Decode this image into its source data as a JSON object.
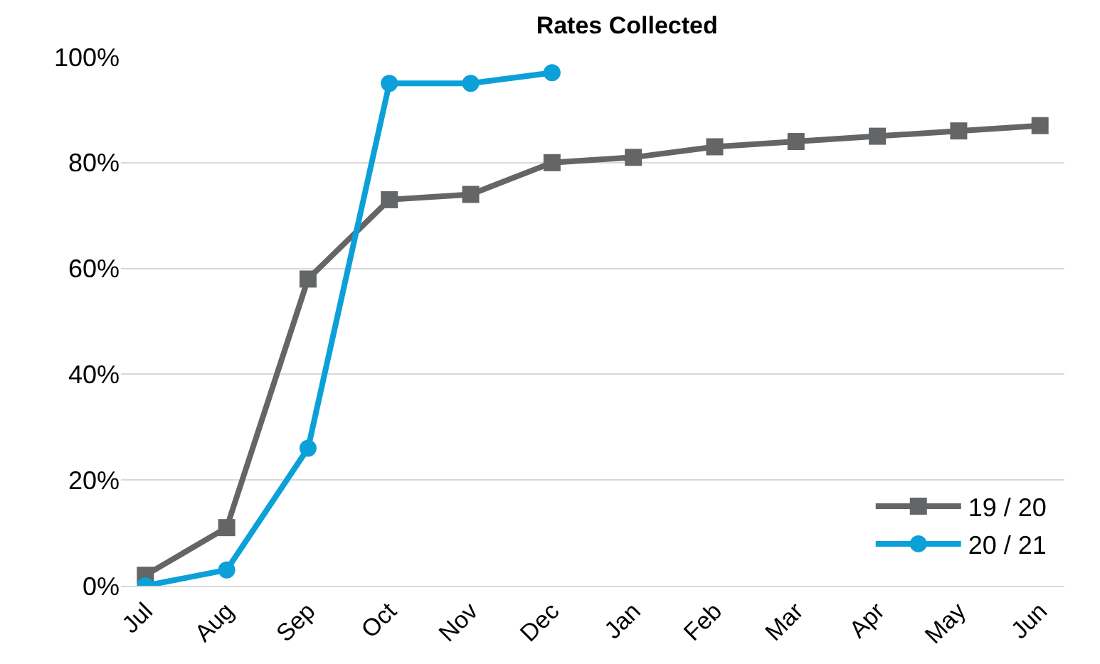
{
  "chart_data": {
    "type": "line",
    "title": "Rates Collected",
    "categories": [
      "Jul",
      "Aug",
      "Sep",
      "Oct",
      "Nov",
      "Dec",
      "Jan",
      "Feb",
      "Mar",
      "Apr",
      "May",
      "Jun"
    ],
    "series": [
      {
        "name": "19 / 20",
        "color": "#646567",
        "marker": "square",
        "values": [
          2,
          11,
          58,
          73,
          74,
          80,
          81,
          83,
          84,
          85,
          86,
          87
        ]
      },
      {
        "name": "20 / 21",
        "color": "#0ca0d8",
        "marker": "circle",
        "values": [
          0,
          3,
          26,
          95,
          95,
          97,
          null,
          null,
          null,
          null,
          null,
          null
        ]
      }
    ],
    "ylim": [
      0,
      100
    ],
    "yticks": [
      {
        "value": 0,
        "label": "0%"
      },
      {
        "value": 20,
        "label": "20%"
      },
      {
        "value": 40,
        "label": "40%"
      },
      {
        "value": 60,
        "label": "60%"
      },
      {
        "value": 80,
        "label": "80%"
      },
      {
        "value": 100,
        "label": "100%"
      }
    ],
    "grid": "y",
    "legend": "bottom right",
    "line_style": "solid"
  }
}
